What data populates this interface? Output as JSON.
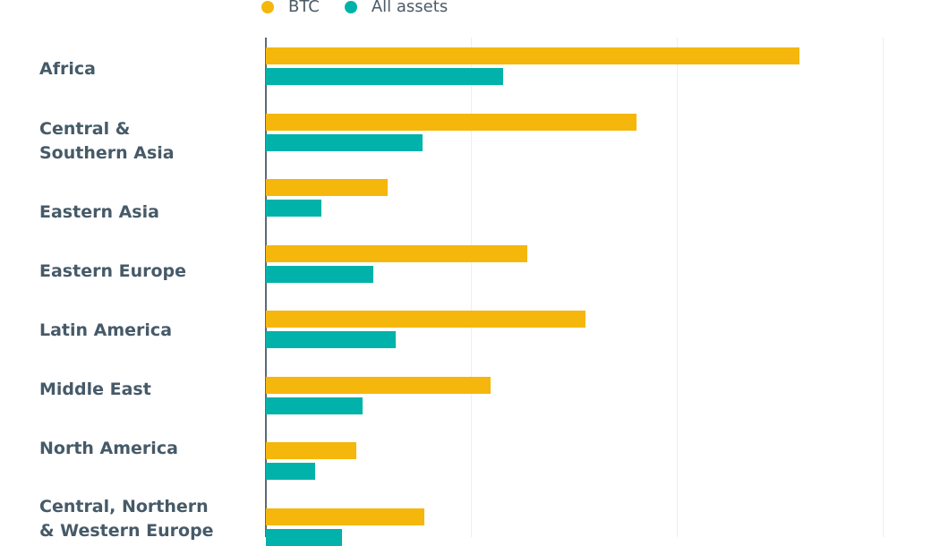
{
  "colors": {
    "btc": "#F5B70B",
    "all": "#00B2A9",
    "axis": "#5b6b77",
    "grid": "#eeeeee",
    "text": "#465a68"
  },
  "legend": [
    {
      "label": "BTC",
      "color": "#F5B70B"
    },
    {
      "label": "All assets",
      "color": "#00B2A9"
    }
  ],
  "chart_data": {
    "type": "bar",
    "orientation": "horizontal",
    "title": "",
    "xlabel": "",
    "ylabel": "",
    "grid": true,
    "legend_position": "top",
    "note": "No axis tick labels visible; values expressed in gridline units (1 unit = one gridline interval)",
    "categories": [
      "Africa",
      "Central & Southern Asia",
      "Eastern Asia",
      "Eastern Europe",
      "Latin America",
      "Middle East",
      "North America",
      "Central, Northern & Western Europe"
    ],
    "category_labels": [
      "Africa",
      "Central &\nSouthern Asia",
      "Eastern Asia",
      "Eastern Europe",
      "Latin America",
      "Middle East",
      "North America",
      "Central, Northern\n& Western Europe"
    ],
    "series": [
      {
        "name": "BTC",
        "values": [
          2.59,
          1.8,
          0.59,
          1.27,
          1.55,
          1.09,
          0.44,
          0.77
        ]
      },
      {
        "name": "All assets",
        "values": [
          1.15,
          0.76,
          0.27,
          0.52,
          0.63,
          0.47,
          0.24,
          0.37
        ]
      }
    ],
    "xlim": [
      0,
      3
    ]
  }
}
